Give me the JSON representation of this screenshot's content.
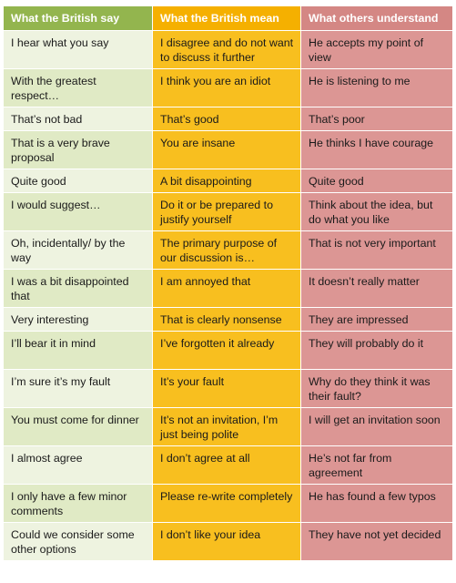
{
  "headers": [
    "What the British say",
    "What the British mean",
    "What others understand"
  ],
  "rows": [
    [
      "I hear what you say",
      "I disagree and do not want to discuss it further",
      "He accepts my point of view"
    ],
    [
      "With the greatest respect…",
      "I think you are an idiot",
      "He is listening to me"
    ],
    [
      "That’s not bad",
      "That’s good",
      "That’s poor"
    ],
    [
      "That is a very brave proposal",
      "You are insane",
      "He thinks I have courage"
    ],
    [
      "Quite good",
      "A bit disappointing",
      "Quite good"
    ],
    [
      "I would suggest…",
      "Do it or be prepared to justify yourself",
      "Think about the idea, but do what you like"
    ],
    [
      "Oh, incidentally/ by the way",
      "The primary purpose of our discussion is…",
      "That is not very important"
    ],
    [
      "I was a bit disappointed that",
      "I am annoyed that",
      "It doesn’t really matter"
    ],
    [
      "Very interesting",
      "That is clearly nonsense",
      "They are impressed"
    ],
    [
      "I’ll bear it in mind",
      "I’ve forgotten it already",
      "They will probably do it"
    ],
    [
      "I’m sure it’s my fault",
      "It’s your fault",
      "Why do they think it was their fault?"
    ],
    [
      "You must come for dinner",
      "It’s not an invitation, I’m just being polite",
      "I will get an invitation soon"
    ],
    [
      "I almost agree",
      "I don’t agree at all",
      "He’s not far from agreement"
    ],
    [
      "I only have a few minor comments",
      "Please re-write completely",
      "He has found a few typos"
    ],
    [
      "Could we consider some other options",
      "I don’t like your idea",
      "They have not yet decided"
    ]
  ],
  "colors": {
    "header_say": "#93b54e",
    "header_mean": "#f5b000",
    "header_understand": "#d48784",
    "cell_say_light": "#eef3e0",
    "cell_say_alt": "#e0eac5",
    "cell_mean": "#f8bf1f",
    "cell_understand": "#dc9694"
  }
}
